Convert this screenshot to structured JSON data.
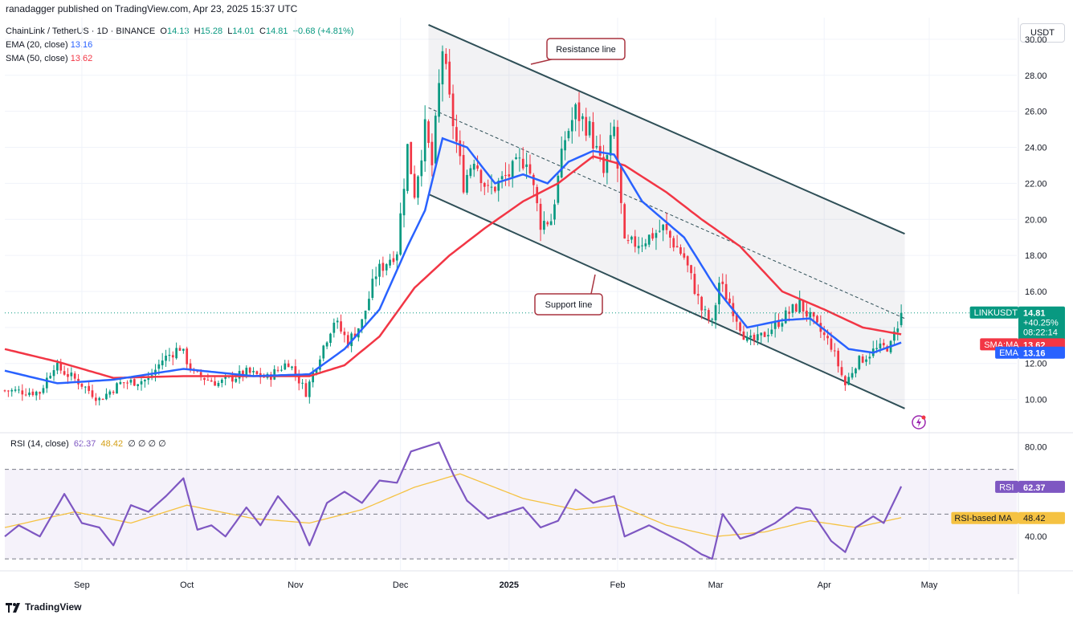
{
  "header": {
    "publisher": "ranadagger published on TradingView.com, Apr 23, 2025 15:37 UTC",
    "currency": "USDT",
    "brand": "TradingView"
  },
  "legend": {
    "symbol": "ChainLink / TetherUS · 1D · BINANCE",
    "ohlc": {
      "o_label": "O",
      "o": "14.13",
      "h_label": "H",
      "h": "15.28",
      "l_label": "L",
      "l": "14.01",
      "c_label": "C",
      "c": "14.81",
      "chg": "+0.68 (+4.81%)"
    },
    "ema": {
      "label": "EMA (20, close)",
      "value": "13.16"
    },
    "sma": {
      "label": "SMA (50, close)",
      "value": "13.62"
    },
    "rsi": {
      "label": "RSI (14, close)",
      "value": "62.37",
      "ma": "48.42",
      "rest": "∅ ∅ ∅ ∅"
    }
  },
  "colors": {
    "up": "#089981",
    "down": "#f23645",
    "ema": "#2962ff",
    "sma": "#f23645",
    "rsi": "#7e57c2",
    "rsi_ma": "#f5c242",
    "channel": "#2f4f57"
  },
  "icons": [
    "lightning-icon",
    "tradingview-logo-icon"
  ],
  "chart_data": [
    {
      "type": "candlestick",
      "title": "ChainLink / TetherUS",
      "ylim": [
        8.2,
        31.2
      ],
      "y_ticks": [
        "10.00",
        "12.00",
        "14.00",
        "16.00",
        "18.00",
        "20.00",
        "22.00",
        "24.00",
        "26.00",
        "28.00",
        "30.00"
      ],
      "x_ticks": [
        "Sep",
        "Oct",
        "Nov",
        "Dec",
        "2025",
        "Feb",
        "Mar",
        "Apr",
        "May"
      ],
      "x_tick_dates": [
        "2024-09-01",
        "2024-10-01",
        "2024-11-01",
        "2024-12-01",
        "2025-01-01",
        "2025-02-01",
        "2025-03-01",
        "2025-04-01",
        "2025-05-01"
      ],
      "x_range": [
        "2024-08-10",
        "2025-05-26"
      ],
      "grid": true,
      "close_anchors": [
        [
          "2024-08-10",
          10.5
        ],
        [
          "2024-08-20",
          10.4
        ],
        [
          "2024-08-24",
          11.9
        ],
        [
          "2024-08-31",
          11.0
        ],
        [
          "2024-09-06",
          10.0
        ],
        [
          "2024-09-12",
          10.9
        ],
        [
          "2024-09-20",
          11.1
        ],
        [
          "2024-09-24",
          12.2
        ],
        [
          "2024-09-29",
          12.9
        ],
        [
          "2024-10-03",
          11.4
        ],
        [
          "2024-10-10",
          10.9
        ],
        [
          "2024-10-18",
          11.5
        ],
        [
          "2024-10-24",
          11.2
        ],
        [
          "2024-10-30",
          12.1
        ],
        [
          "2024-11-04",
          10.4
        ],
        [
          "2024-11-08",
          12.5
        ],
        [
          "2024-11-12",
          14.4
        ],
        [
          "2024-11-16",
          13.2
        ],
        [
          "2024-11-20",
          14.3
        ],
        [
          "2024-11-24",
          17.0
        ],
        [
          "2024-11-30",
          18.3
        ],
        [
          "2024-12-03",
          24.0
        ],
        [
          "2024-12-05",
          21.5
        ],
        [
          "2024-12-08",
          25.0
        ],
        [
          "2024-12-10",
          23.0
        ],
        [
          "2024-12-13",
          29.5
        ],
        [
          "2024-12-15",
          26.5
        ],
        [
          "2024-12-19",
          22.0
        ],
        [
          "2024-12-22",
          23.5
        ],
        [
          "2024-12-26",
          21.5
        ],
        [
          "2025-01-01",
          22.5
        ],
        [
          "2025-01-06",
          23.5
        ],
        [
          "2025-01-10",
          19.8
        ],
        [
          "2025-01-13",
          20.0
        ],
        [
          "2025-01-17",
          24.5
        ],
        [
          "2025-01-20",
          26.0
        ],
        [
          "2025-01-24",
          25.0
        ],
        [
          "2025-01-28",
          22.5
        ],
        [
          "2025-01-31",
          25.0
        ],
        [
          "2025-02-03",
          18.5
        ],
        [
          "2025-02-08",
          18.8
        ],
        [
          "2025-02-14",
          19.5
        ],
        [
          "2025-02-20",
          17.9
        ],
        [
          "2025-02-25",
          15.0
        ],
        [
          "2025-02-28",
          14.2
        ],
        [
          "2025-03-02",
          16.5
        ],
        [
          "2025-03-06",
          15.0
        ],
        [
          "2025-03-10",
          13.2
        ],
        [
          "2025-03-13",
          13.3
        ],
        [
          "2025-03-20",
          14.5
        ],
        [
          "2025-03-25",
          15.3
        ],
        [
          "2025-03-30",
          14.0
        ],
        [
          "2025-04-03",
          13.0
        ],
        [
          "2025-04-07",
          10.8
        ],
        [
          "2025-04-10",
          12.0
        ],
        [
          "2025-04-15",
          12.7
        ],
        [
          "2025-04-20",
          13.0
        ],
        [
          "2025-04-23",
          14.81
        ]
      ],
      "ema_anchors": [
        [
          "2024-08-10",
          11.6
        ],
        [
          "2024-08-25",
          10.9
        ],
        [
          "2024-09-10",
          11.1
        ],
        [
          "2024-09-30",
          11.7
        ],
        [
          "2024-10-20",
          11.3
        ],
        [
          "2024-11-05",
          11.4
        ],
        [
          "2024-11-15",
          12.8
        ],
        [
          "2024-11-25",
          15.0
        ],
        [
          "2024-12-03",
          18.5
        ],
        [
          "2024-12-08",
          20.5
        ],
        [
          "2024-12-13",
          24.5
        ],
        [
          "2024-12-20",
          24.0
        ],
        [
          "2024-12-28",
          22.0
        ],
        [
          "2025-01-05",
          22.5
        ],
        [
          "2025-01-12",
          22.0
        ],
        [
          "2025-01-18",
          23.2
        ],
        [
          "2025-01-25",
          23.8
        ],
        [
          "2025-01-31",
          23.6
        ],
        [
          "2025-02-08",
          21.0
        ],
        [
          "2025-02-20",
          19.0
        ],
        [
          "2025-03-01",
          16.2
        ],
        [
          "2025-03-10",
          14.0
        ],
        [
          "2025-03-20",
          14.4
        ],
        [
          "2025-03-28",
          14.5
        ],
        [
          "2025-04-08",
          12.8
        ],
        [
          "2025-04-15",
          12.6
        ],
        [
          "2025-04-23",
          13.16
        ]
      ],
      "sma_anchors": [
        [
          "2024-08-10",
          12.8
        ],
        [
          "2024-08-25",
          12.1
        ],
        [
          "2024-09-10",
          11.2
        ],
        [
          "2024-09-30",
          11.3
        ],
        [
          "2024-10-20",
          11.3
        ],
        [
          "2024-11-05",
          11.3
        ],
        [
          "2024-11-15",
          11.9
        ],
        [
          "2024-11-25",
          13.5
        ],
        [
          "2024-12-05",
          16.2
        ],
        [
          "2024-12-15",
          18.0
        ],
        [
          "2024-12-25",
          19.5
        ],
        [
          "2025-01-05",
          21.0
        ],
        [
          "2025-01-15",
          22.0
        ],
        [
          "2025-01-25",
          23.5
        ],
        [
          "2025-02-03",
          23.0
        ],
        [
          "2025-02-15",
          21.5
        ],
        [
          "2025-02-25",
          20.0
        ],
        [
          "2025-03-08",
          18.5
        ],
        [
          "2025-03-20",
          16.0
        ],
        [
          "2025-04-01",
          15.0
        ],
        [
          "2025-04-12",
          14.0
        ],
        [
          "2025-04-23",
          13.62
        ]
      ],
      "resistance_line": {
        "label": "Resistance line",
        "from": [
          "2024-12-09",
          30.8
        ],
        "to": [
          "2025-04-24",
          19.2
        ]
      },
      "support_line": {
        "label": "Support line",
        "from": [
          "2024-12-09",
          21.4
        ],
        "to": [
          "2025-04-24",
          9.5
        ]
      },
      "midline": {
        "from": [
          "2024-12-09",
          26.2
        ],
        "to": [
          "2025-04-24",
          14.5
        ]
      },
      "last_price": {
        "label": "LINKUSDT",
        "price": "14.81",
        "change": "+40.25%",
        "countdown": "08:22:14"
      },
      "sma_tag": {
        "label": "SMA:MA",
        "value": "13.62"
      },
      "ema_tag": {
        "label": "EMA",
        "value": "13.16"
      }
    },
    {
      "type": "line",
      "title": "RSI (14, close)",
      "ylim": [
        25,
        86
      ],
      "y_ticks": [
        "40.00",
        "80.00"
      ],
      "bands": [
        30,
        50,
        70
      ],
      "rsi_anchors": [
        [
          "2024-08-10",
          40
        ],
        [
          "2024-08-14",
          45
        ],
        [
          "2024-08-20",
          40
        ],
        [
          "2024-08-27",
          59
        ],
        [
          "2024-09-01",
          46
        ],
        [
          "2024-09-06",
          44
        ],
        [
          "2024-09-10",
          36
        ],
        [
          "2024-09-15",
          54
        ],
        [
          "2024-09-20",
          51
        ],
        [
          "2024-09-25",
          58
        ],
        [
          "2024-09-30",
          66
        ],
        [
          "2024-10-04",
          43
        ],
        [
          "2024-10-08",
          45
        ],
        [
          "2024-10-12",
          40
        ],
        [
          "2024-10-18",
          53
        ],
        [
          "2024-10-22",
          45
        ],
        [
          "2024-10-27",
          58
        ],
        [
          "2024-11-02",
          47
        ],
        [
          "2024-11-05",
          36
        ],
        [
          "2024-11-10",
          55
        ],
        [
          "2024-11-15",
          60
        ],
        [
          "2024-11-20",
          55
        ],
        [
          "2024-11-25",
          65
        ],
        [
          "2024-11-30",
          64
        ],
        [
          "2024-12-04",
          78
        ],
        [
          "2024-12-08",
          80
        ],
        [
          "2024-12-12",
          82
        ],
        [
          "2024-12-16",
          68
        ],
        [
          "2024-12-20",
          56
        ],
        [
          "2024-12-26",
          48
        ],
        [
          "2025-01-01",
          51
        ],
        [
          "2025-01-05",
          53
        ],
        [
          "2025-01-10",
          44
        ],
        [
          "2025-01-15",
          47
        ],
        [
          "2025-01-20",
          61
        ],
        [
          "2025-01-25",
          55
        ],
        [
          "2025-01-31",
          58
        ],
        [
          "2025-02-03",
          40
        ],
        [
          "2025-02-10",
          45
        ],
        [
          "2025-02-20",
          37
        ],
        [
          "2025-02-25",
          32
        ],
        [
          "2025-02-28",
          30
        ],
        [
          "2025-03-03",
          50
        ],
        [
          "2025-03-08",
          39
        ],
        [
          "2025-03-12",
          41
        ],
        [
          "2025-03-18",
          46
        ],
        [
          "2025-03-24",
          53
        ],
        [
          "2025-03-28",
          52
        ],
        [
          "2025-04-03",
          38
        ],
        [
          "2025-04-07",
          33
        ],
        [
          "2025-04-10",
          44
        ],
        [
          "2025-04-15",
          49
        ],
        [
          "2025-04-18",
          46
        ],
        [
          "2025-04-23",
          62.37
        ]
      ],
      "rsi_ma_anchors": [
        [
          "2024-08-10",
          44
        ],
        [
          "2024-08-30",
          51
        ],
        [
          "2024-09-15",
          46
        ],
        [
          "2024-10-01",
          54
        ],
        [
          "2024-10-20",
          48
        ],
        [
          "2024-11-05",
          46
        ],
        [
          "2024-11-20",
          52
        ],
        [
          "2024-12-05",
          62
        ],
        [
          "2024-12-18",
          68
        ],
        [
          "2025-01-05",
          57
        ],
        [
          "2025-01-20",
          52
        ],
        [
          "2025-02-01",
          54
        ],
        [
          "2025-02-15",
          45
        ],
        [
          "2025-03-01",
          40
        ],
        [
          "2025-03-15",
          42
        ],
        [
          "2025-03-28",
          47
        ],
        [
          "2025-04-10",
          44
        ],
        [
          "2025-04-23",
          48.42
        ]
      ],
      "rsi_tag": {
        "label": "RSI",
        "value": "62.37"
      },
      "rsi_ma_tag": {
        "label": "RSI-based MA",
        "value": "48.42"
      }
    }
  ]
}
